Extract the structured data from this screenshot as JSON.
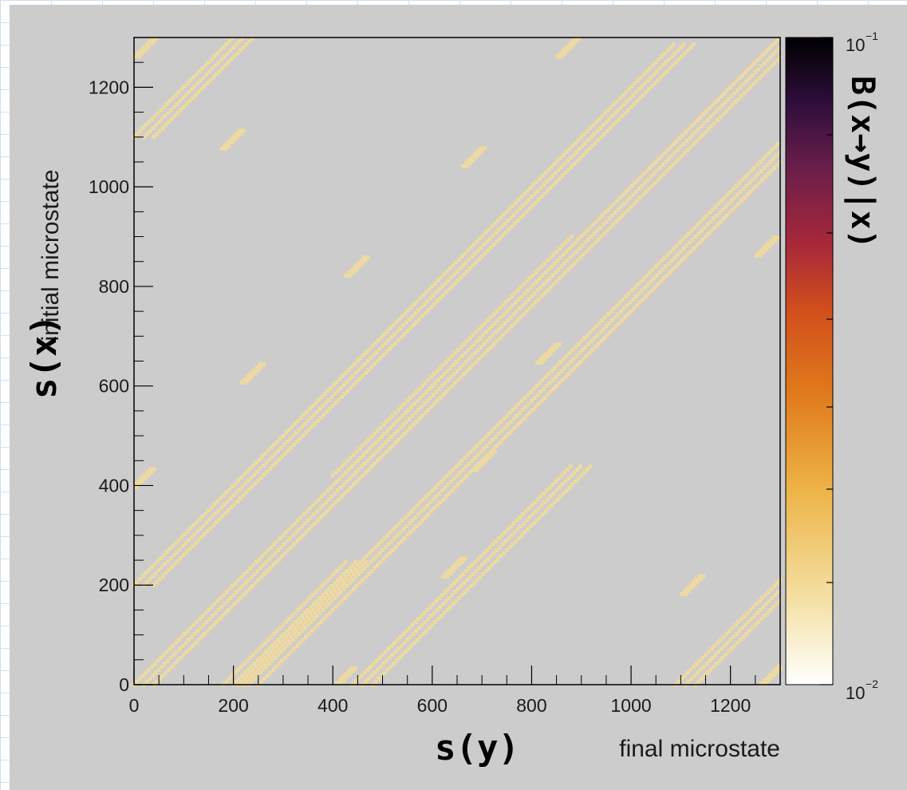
{
  "chart_data": {
    "type": "heatmap",
    "xlabel": "final microstate",
    "ylabel": "initial microstate",
    "xlabel_handwritten": "s(y)",
    "ylabel_handwritten": "s(x)",
    "colorbar_label_handwritten": "B(x→y)|x)",
    "xlim": [
      0,
      1300
    ],
    "ylim": [
      0,
      1300
    ],
    "x_ticks": [
      "0",
      "200",
      "400",
      "600",
      "800",
      "1000",
      "1200"
    ],
    "y_ticks": [
      "0",
      "200",
      "400",
      "600",
      "800",
      "1000",
      "1200"
    ],
    "x_tick_values": [
      0,
      200,
      400,
      600,
      800,
      1000,
      1200
    ],
    "y_tick_values": [
      0,
      200,
      400,
      600,
      800,
      1000,
      1200
    ],
    "colorbar": {
      "scale": "log",
      "range": [
        0.01,
        0.1
      ],
      "top_label_base": "10",
      "top_label_exp": "−1",
      "bottom_label_base": "10",
      "bottom_label_exp": "−2",
      "colormap": [
        "#ffffff",
        "#f5dfa0",
        "#eba53c",
        "#e06a1c",
        "#c23a24",
        "#8e2432",
        "#4e1a4e",
        "#1c0c2a",
        "#000000"
      ]
    },
    "background_color": "#cccccc",
    "cell_color": "#eed9a0",
    "bands": [
      {
        "x_start": 0,
        "y_start": 0,
        "x_end": 1300,
        "y_end": 1300
      },
      {
        "x_start": 0,
        "y_start": 200,
        "x_end": 1090,
        "y_end": 1290
      },
      {
        "x_start": 0,
        "y_start": 1100,
        "x_end": 210,
        "y_end": 1300
      },
      {
        "x_start": 210,
        "y_start": 0,
        "x_end": 1300,
        "y_end": 1090
      },
      {
        "x_start": 1090,
        "y_start": 0,
        "x_end": 1300,
        "y_end": 210
      },
      {
        "x_start": 180,
        "y_start": 0,
        "x_end": 430,
        "y_end": 250
      },
      {
        "x_start": 400,
        "y_start": 420,
        "x_end": 880,
        "y_end": 900
      },
      {
        "x_start": 440,
        "y_start": 0,
        "x_end": 880,
        "y_end": 440
      }
    ],
    "blobs": [
      {
        "x": 20,
        "y": 1280
      },
      {
        "x": 195,
        "y": 1095
      },
      {
        "x": 680,
        "y": 1060
      },
      {
        "x": 445,
        "y": 840
      },
      {
        "x": 235,
        "y": 625
      },
      {
        "x": 15,
        "y": 415
      },
      {
        "x": 830,
        "y": 665
      },
      {
        "x": 1270,
        "y": 880
      },
      {
        "x": 700,
        "y": 450
      },
      {
        "x": 640,
        "y": 235
      },
      {
        "x": 1120,
        "y": 200
      },
      {
        "x": 420,
        "y": 15
      },
      {
        "x": 870,
        "y": 1280
      },
      {
        "x": 1280,
        "y": 20
      }
    ]
  }
}
